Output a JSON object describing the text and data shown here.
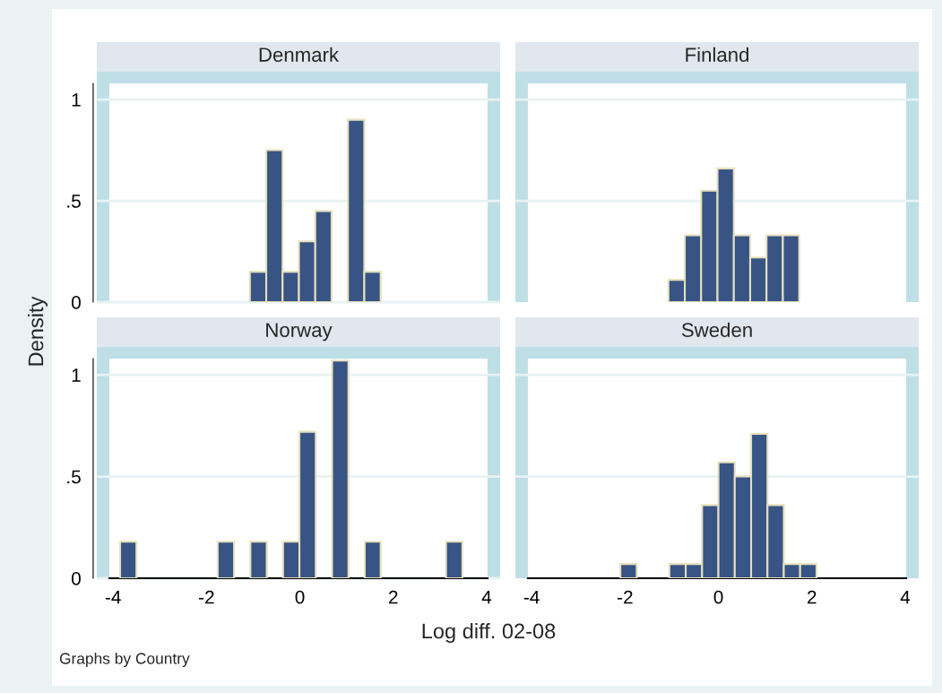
{
  "chart_data": [
    {
      "type": "histogram",
      "title": "Denmark",
      "ylabel": "Density",
      "bins": [
        -1.07,
        -0.72,
        -0.37,
        -0.02,
        0.33,
        0.68,
        1.03,
        1.38,
        1.73
      ],
      "values": [
        0.15,
        0.75,
        0.15,
        0.3,
        0.45,
        0,
        0.9,
        0.15
      ],
      "color": "#385485",
      "xlim": [
        -4.08,
        4.02
      ],
      "ylim": [
        0,
        1.08
      ],
      "yticks": [
        0,
        {
          "value": 0.5,
          "label": ".5"
        },
        1
      ],
      "grid": "y",
      "tick_labels": "y"
    },
    {
      "type": "histogram",
      "title": "Finland",
      "bins": [
        -1.07,
        -0.72,
        -0.37,
        -0.02,
        0.33,
        0.68,
        1.03,
        1.38,
        1.73
      ],
      "values": [
        0.11,
        0.33,
        0.55,
        0.66,
        0.33,
        0.22,
        0.33,
        0.33
      ],
      "color": "#385485",
      "xlim": [
        -4.08,
        4.02
      ],
      "ylim": [
        0,
        1.08
      ],
      "grid": "y",
      "tick_labels": false
    },
    {
      "type": "histogram",
      "title": "Norway",
      "bins": [
        -3.85,
        -3.5,
        -1.76,
        -1.41,
        -1.06,
        -0.71,
        -0.36,
        -0.01,
        0.34,
        0.69,
        1.04,
        1.39,
        1.73,
        3.13,
        3.48
      ],
      "values": [
        0.18,
        0,
        0.18,
        0,
        0.18,
        0,
        0.18,
        0.72,
        0,
        1.07,
        0,
        0.18,
        0,
        0.18
      ],
      "color": "#385485",
      "xlim": [
        -4.08,
        4.02
      ],
      "ylim": [
        0,
        1.08
      ],
      "xticks": [
        -4,
        -2,
        0,
        2,
        4
      ],
      "yticks": [
        0,
        {
          "value": 0.5,
          "label": ".5"
        },
        1
      ],
      "grid": "y"
    },
    {
      "type": "histogram",
      "title": "Sweden",
      "xlabel": "Log diff. 02-08",
      "annotations": [
        "Graphs by Country"
      ],
      "bins": [
        -2.1,
        -1.75,
        -1.05,
        -0.7,
        -0.35,
        0,
        0.35,
        0.7,
        1.05,
        1.4,
        1.75,
        2.1
      ],
      "values": [
        0.07,
        0,
        0.07,
        0.07,
        0.36,
        0.57,
        0.5,
        0.71,
        0.36,
        0.07,
        0.07
      ],
      "color": "#385485",
      "xlim": [
        -4.08,
        4.02
      ],
      "ylim": [
        0,
        1.08
      ],
      "xticks": [
        -4,
        -2,
        0,
        2,
        4
      ],
      "grid": "y",
      "tick_labels": "x"
    }
  ]
}
